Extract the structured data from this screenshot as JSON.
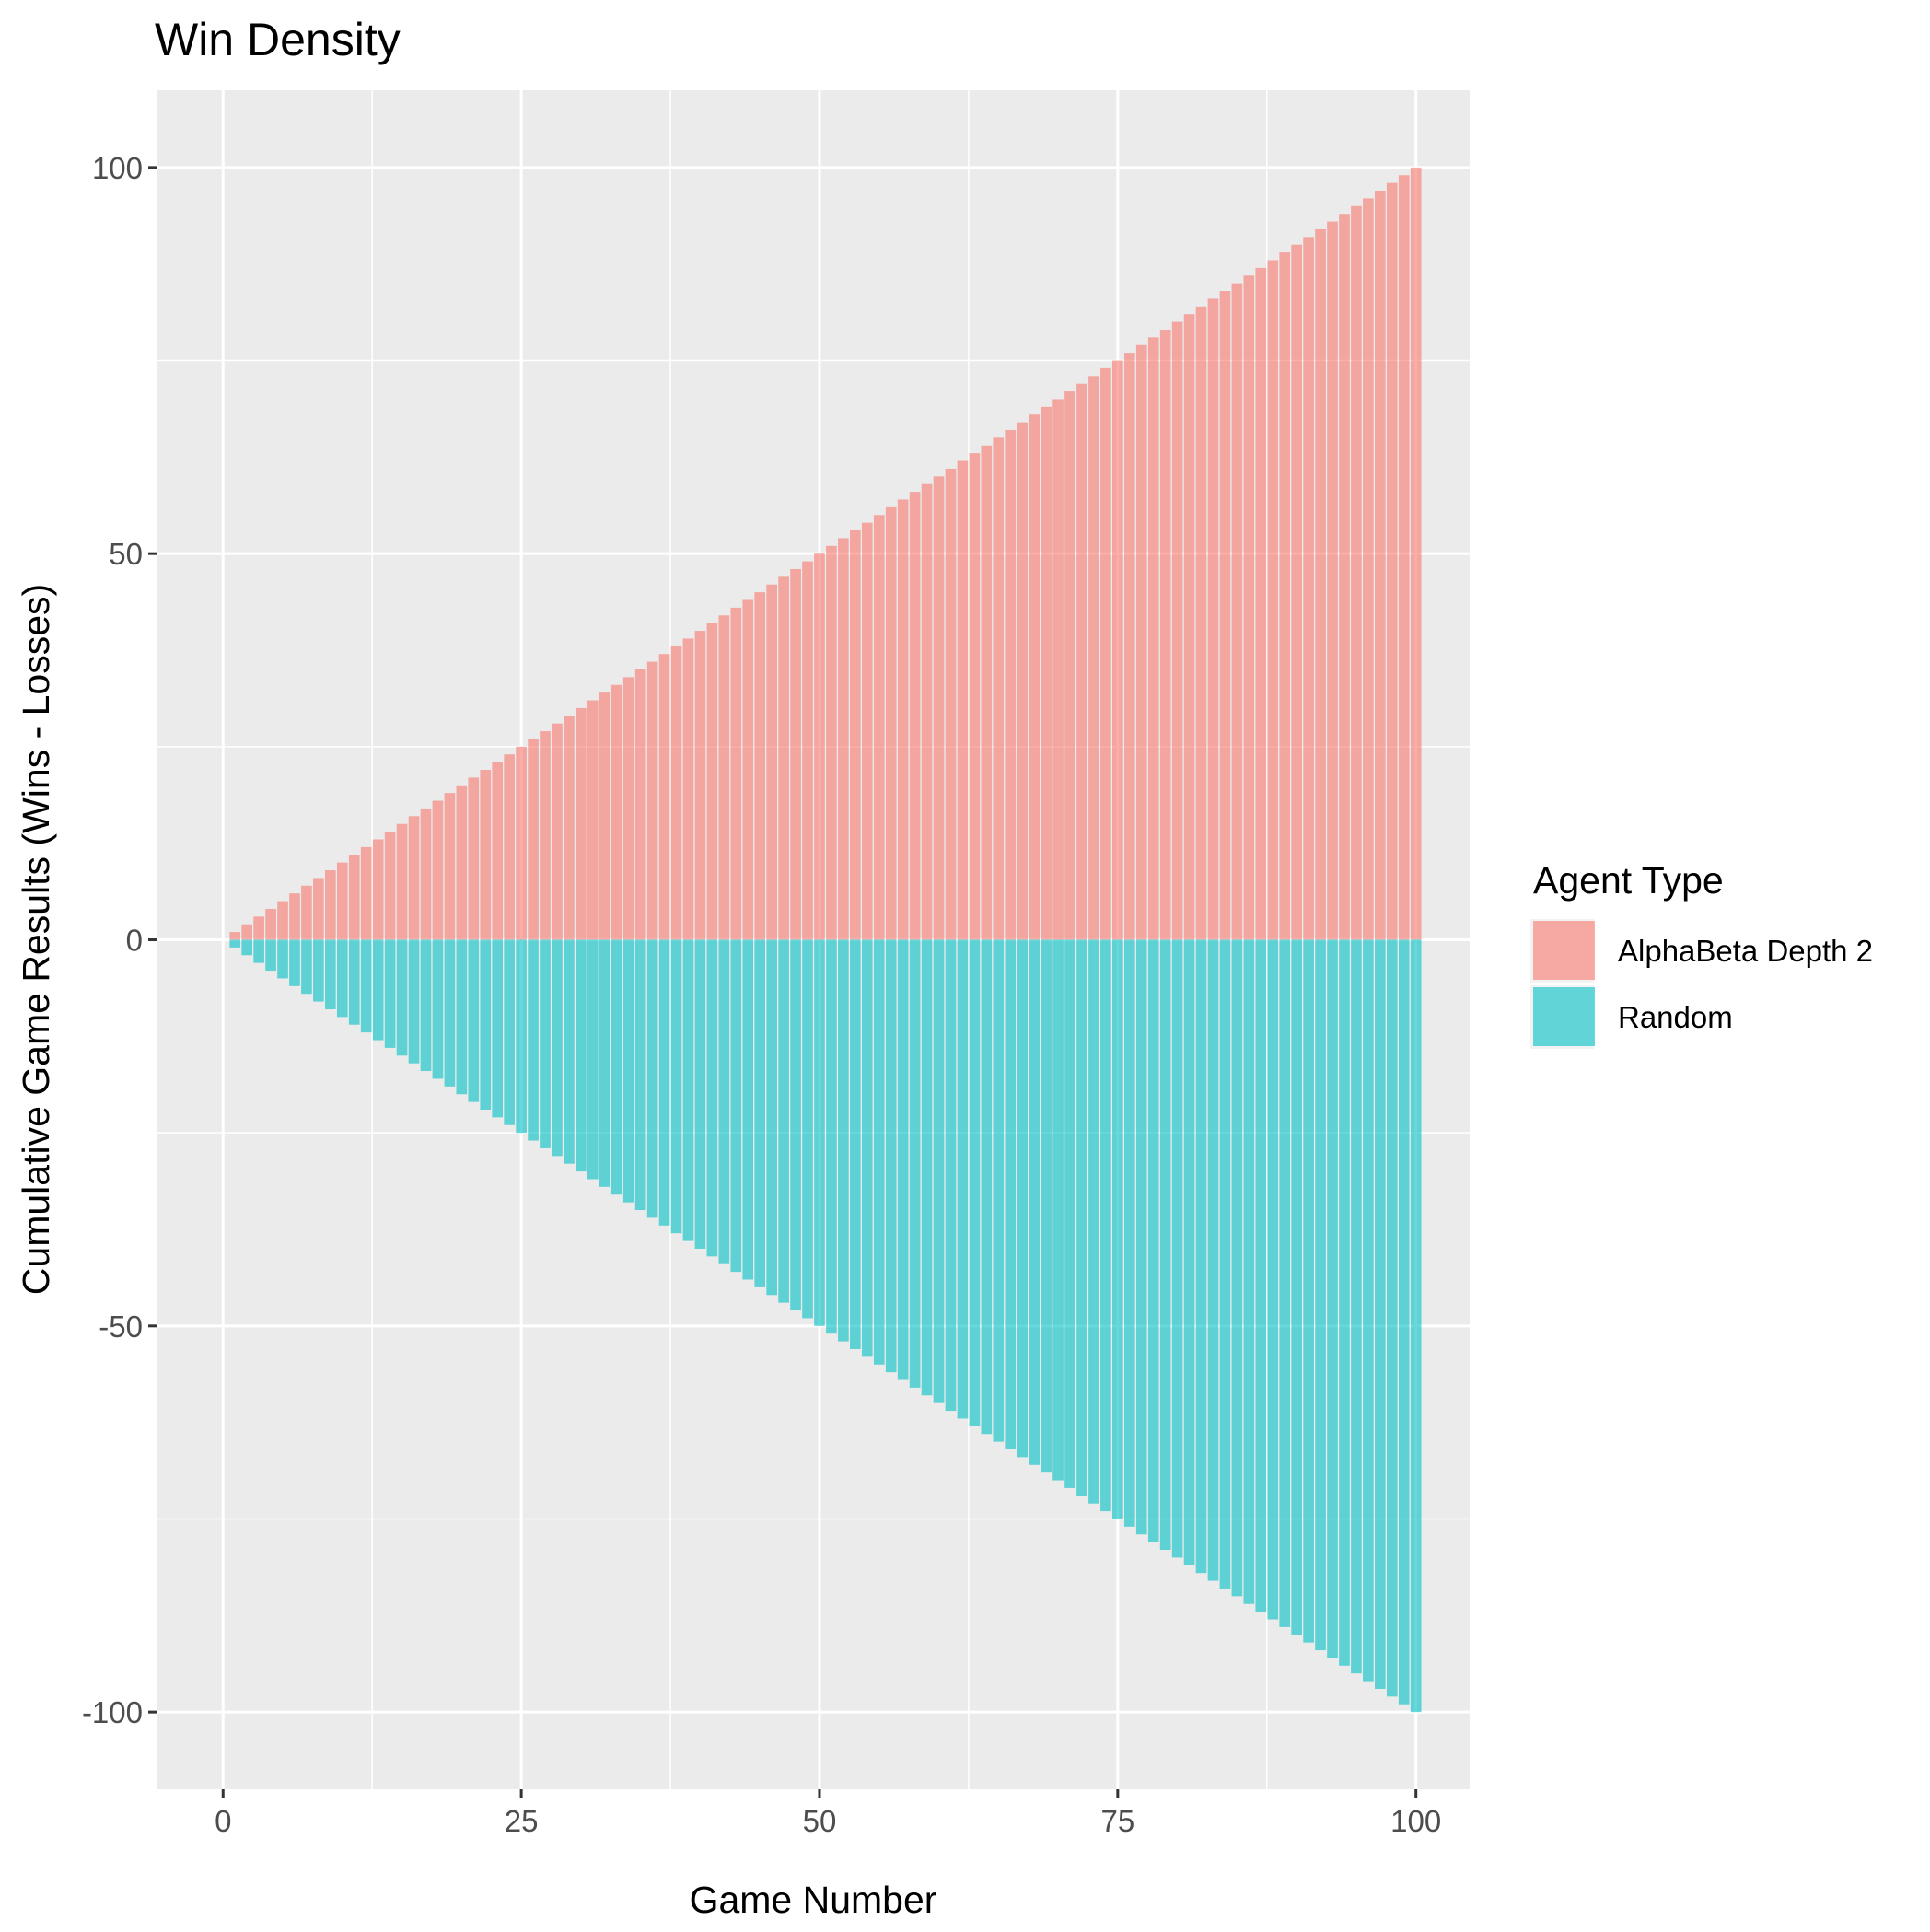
{
  "chart_data": {
    "type": "bar",
    "title": "Win Density",
    "xlabel": "Game Number",
    "ylabel": "Cumulative Game Results (Wins - Losses)",
    "x_range": [
      1,
      100
    ],
    "xlim": [
      -5.5,
      104.5
    ],
    "ylim": [
      -110,
      110
    ],
    "x_ticks": [
      0,
      25,
      50,
      75,
      100
    ],
    "y_ticks": [
      -100,
      -50,
      0,
      50,
      100
    ],
    "x_tick_labels": [
      "0",
      "25",
      "50",
      "75",
      "100"
    ],
    "y_tick_labels": [
      "-100",
      "-50",
      "0",
      "50",
      "100"
    ],
    "grid": true,
    "legend_position": "right",
    "legend_title": "Agent Type",
    "series": [
      {
        "name": "AlphaBeta Depth 2",
        "color": "#F8766D",
        "values": [
          1,
          2,
          3,
          4,
          5,
          6,
          7,
          8,
          9,
          10,
          11,
          12,
          13,
          14,
          15,
          16,
          17,
          18,
          19,
          20,
          21,
          22,
          23,
          24,
          25,
          26,
          27,
          28,
          29,
          30,
          31,
          32,
          33,
          34,
          35,
          36,
          37,
          38,
          39,
          40,
          41,
          42,
          43,
          44,
          45,
          46,
          47,
          48,
          49,
          50,
          51,
          52,
          53,
          54,
          55,
          56,
          57,
          58,
          59,
          60,
          61,
          62,
          63,
          64,
          65,
          66,
          67,
          68,
          69,
          70,
          71,
          72,
          73,
          74,
          75,
          76,
          77,
          78,
          79,
          80,
          81,
          82,
          83,
          84,
          85,
          86,
          87,
          88,
          89,
          90,
          91,
          92,
          93,
          94,
          95,
          96,
          97,
          98,
          99,
          100
        ]
      },
      {
        "name": "Random",
        "color": "#00BFC4",
        "values": [
          -1,
          -2,
          -3,
          -4,
          -5,
          -6,
          -7,
          -8,
          -9,
          -10,
          -11,
          -12,
          -13,
          -14,
          -15,
          -16,
          -17,
          -18,
          -19,
          -20,
          -21,
          -22,
          -23,
          -24,
          -25,
          -26,
          -27,
          -28,
          -29,
          -30,
          -31,
          -32,
          -33,
          -34,
          -35,
          -36,
          -37,
          -38,
          -39,
          -40,
          -41,
          -42,
          -43,
          -44,
          -45,
          -46,
          -47,
          -48,
          -49,
          -50,
          -51,
          -52,
          -53,
          -54,
          -55,
          -56,
          -57,
          -58,
          -59,
          -60,
          -61,
          -62,
          -63,
          -64,
          -65,
          -66,
          -67,
          -68,
          -69,
          -70,
          -71,
          -72,
          -73,
          -74,
          -75,
          -76,
          -77,
          -78,
          -79,
          -80,
          -81,
          -82,
          -83,
          -84,
          -85,
          -86,
          -87,
          -88,
          -89,
          -90,
          -91,
          -92,
          -93,
          -94,
          -95,
          -96,
          -97,
          -98,
          -99,
          -100
        ]
      }
    ]
  }
}
